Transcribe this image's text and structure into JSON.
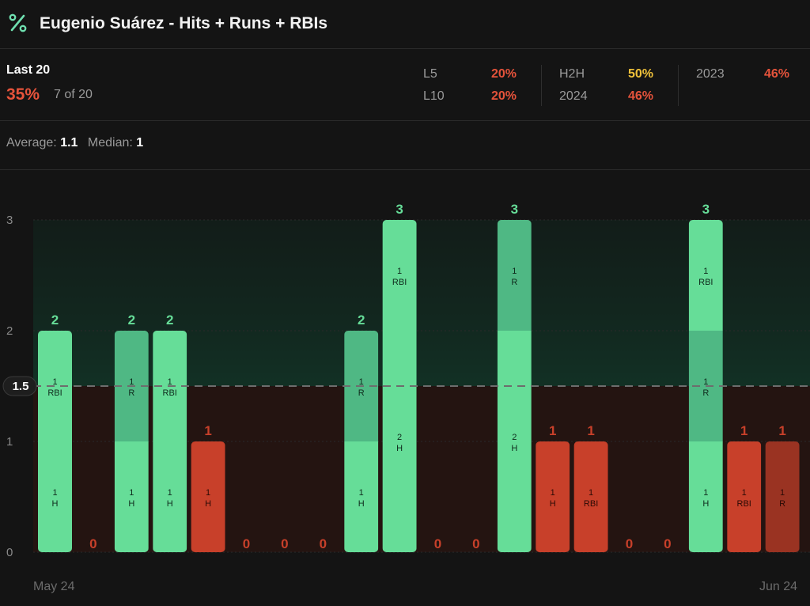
{
  "header": {
    "icon": "percent-icon",
    "title": "Eugenio Suárez - Hits + Runs + RBIs"
  },
  "summary": {
    "label": "Last 20",
    "percent": "35%",
    "count": "7 of 20"
  },
  "stats": [
    {
      "key": "L5",
      "value": "20%",
      "color": "#e5533b"
    },
    {
      "key": "L10",
      "value": "20%",
      "color": "#e5533b"
    },
    {
      "key": "H2H",
      "value": "50%",
      "color": "#f0c23a"
    },
    {
      "key": "2024",
      "value": "46%",
      "color": "#e5533b"
    },
    {
      "key": "2023",
      "value": "46%",
      "color": "#e5533b"
    }
  ],
  "averages": {
    "average_label": "Average:",
    "average_value": "1.1",
    "median_label": "Median:",
    "median_value": "1"
  },
  "dates": {
    "start": "May 24",
    "end": "Jun 24"
  },
  "colors": {
    "over": "#66dd98",
    "over_mid": "#4fb884",
    "under": "#c8402a",
    "under_dark": "#9a3322",
    "line": "#6d6d6d"
  },
  "chart_data": {
    "type": "bar",
    "stacked": true,
    "line": 1.5,
    "line_label": "1.5",
    "ylim": [
      0,
      3
    ],
    "yticks": [
      0,
      1,
      2,
      3
    ],
    "games": [
      {
        "total": 2,
        "over": true,
        "segments": [
          {
            "count": 1,
            "stat": "H"
          },
          {
            "count": 1,
            "stat": "RBI"
          }
        ]
      },
      {
        "total": 0,
        "over": false,
        "segments": []
      },
      {
        "total": 2,
        "over": true,
        "segments": [
          {
            "count": 1,
            "stat": "H"
          },
          {
            "count": 1,
            "stat": "R"
          }
        ]
      },
      {
        "total": 2,
        "over": true,
        "segments": [
          {
            "count": 1,
            "stat": "H"
          },
          {
            "count": 1,
            "stat": "RBI"
          }
        ]
      },
      {
        "total": 1,
        "over": false,
        "segments": [
          {
            "count": 1,
            "stat": "H"
          }
        ]
      },
      {
        "total": 0,
        "over": false,
        "segments": []
      },
      {
        "total": 0,
        "over": false,
        "segments": []
      },
      {
        "total": 0,
        "over": false,
        "segments": []
      },
      {
        "total": 2,
        "over": true,
        "segments": [
          {
            "count": 1,
            "stat": "H"
          },
          {
            "count": 1,
            "stat": "R"
          }
        ]
      },
      {
        "total": 3,
        "over": true,
        "segments": [
          {
            "count": 2,
            "stat": "H"
          },
          {
            "count": 1,
            "stat": "RBI"
          }
        ]
      },
      {
        "total": 0,
        "over": false,
        "segments": []
      },
      {
        "total": 0,
        "over": false,
        "segments": []
      },
      {
        "total": 3,
        "over": true,
        "segments": [
          {
            "count": 2,
            "stat": "H"
          },
          {
            "count": 1,
            "stat": "R"
          }
        ]
      },
      {
        "total": 1,
        "over": false,
        "segments": [
          {
            "count": 1,
            "stat": "H"
          }
        ]
      },
      {
        "total": 1,
        "over": false,
        "segments": [
          {
            "count": 1,
            "stat": "RBI"
          }
        ]
      },
      {
        "total": 0,
        "over": false,
        "segments": []
      },
      {
        "total": 0,
        "over": false,
        "segments": []
      },
      {
        "total": 3,
        "over": true,
        "segments": [
          {
            "count": 1,
            "stat": "H"
          },
          {
            "count": 1,
            "stat": "R"
          },
          {
            "count": 1,
            "stat": "RBI"
          }
        ]
      },
      {
        "total": 1,
        "over": false,
        "segments": [
          {
            "count": 1,
            "stat": "RBI"
          }
        ]
      },
      {
        "total": 1,
        "over": false,
        "segments": [
          {
            "count": 1,
            "stat": "R"
          }
        ]
      }
    ]
  }
}
